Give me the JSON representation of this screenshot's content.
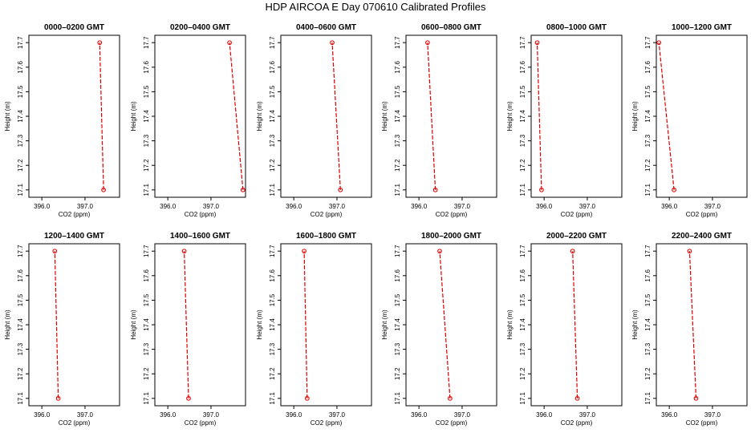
{
  "title": "HDP  AIRCOA E  Day 070610  Calibrated Profiles",
  "line_color": "#e00000",
  "chart_data": [
    {
      "type": "line",
      "title": "0000–0200 GMT",
      "xlabel": "CO2 (ppm)",
      "ylabel": "Height (m)",
      "xlim": [
        395.7,
        397.8
      ],
      "ylim": [
        17.07,
        17.73
      ],
      "xticks": [
        "396.0",
        "397.0"
      ],
      "yticks": [
        "17.1",
        "17.2",
        "17.3",
        "17.4",
        "17.5",
        "17.6",
        "17.7"
      ],
      "x": [
        397.43,
        397.34
      ],
      "y": [
        17.1,
        17.7
      ]
    },
    {
      "type": "line",
      "title": "0200–0400 GMT",
      "xlabel": "CO2 (ppm)",
      "ylabel": "Height (m)",
      "xlim": [
        395.7,
        397.8
      ],
      "ylim": [
        17.07,
        17.73
      ],
      "xticks": [
        "396.0",
        "397.0"
      ],
      "yticks": [
        "17.1",
        "17.2",
        "17.3",
        "17.4",
        "17.5",
        "17.6",
        "17.7"
      ],
      "x": [
        397.74,
        397.43
      ],
      "y": [
        17.1,
        17.7
      ]
    },
    {
      "type": "line",
      "title": "0400–0600 GMT",
      "xlabel": "CO2 (ppm)",
      "ylabel": "Height (m)",
      "xlim": [
        395.7,
        397.8
      ],
      "ylim": [
        17.07,
        17.73
      ],
      "xticks": [
        "396.0",
        "397.0"
      ],
      "yticks": [
        "17.1",
        "17.2",
        "17.3",
        "17.4",
        "17.5",
        "17.6",
        "17.7"
      ],
      "x": [
        397.08,
        396.89
      ],
      "y": [
        17.1,
        17.7
      ]
    },
    {
      "type": "line",
      "title": "0600–0800 GMT",
      "xlabel": "CO2 (ppm)",
      "ylabel": "Height (m)",
      "xlim": [
        395.7,
        397.8
      ],
      "ylim": [
        17.07,
        17.73
      ],
      "xticks": [
        "396.0",
        "397.0"
      ],
      "yticks": [
        "17.1",
        "17.2",
        "17.3",
        "17.4",
        "17.5",
        "17.6",
        "17.7"
      ],
      "x": [
        396.38,
        396.2
      ],
      "y": [
        17.1,
        17.7
      ]
    },
    {
      "type": "line",
      "title": "0800–1000 GMT",
      "xlabel": "CO2 (ppm)",
      "ylabel": "Height (m)",
      "xlim": [
        395.7,
        397.8
      ],
      "ylim": [
        17.07,
        17.73
      ],
      "xticks": [
        "396.0",
        "397.0"
      ],
      "yticks": [
        "17.1",
        "17.2",
        "17.3",
        "17.4",
        "17.5",
        "17.6",
        "17.7"
      ],
      "x": [
        395.94,
        395.84
      ],
      "y": [
        17.1,
        17.7
      ]
    },
    {
      "type": "line",
      "title": "1000–1200 GMT",
      "xlabel": "CO2 (ppm)",
      "ylabel": "Height (m)",
      "xlim": [
        395.7,
        397.8
      ],
      "ylim": [
        17.07,
        17.73
      ],
      "xticks": [
        "396.0",
        "397.0"
      ],
      "yticks": [
        "17.1",
        "17.2",
        "17.3",
        "17.4",
        "17.5",
        "17.6",
        "17.7"
      ],
      "x": [
        396.11,
        395.76
      ],
      "y": [
        17.1,
        17.7
      ]
    },
    {
      "type": "line",
      "title": "1200–1400 GMT",
      "xlabel": "CO2 (ppm)",
      "ylabel": "Height (m)",
      "xlim": [
        395.7,
        397.8
      ],
      "ylim": [
        17.07,
        17.73
      ],
      "xticks": [
        "396.0",
        "397.0"
      ],
      "yticks": [
        "17.1",
        "17.2",
        "17.3",
        "17.4",
        "17.5",
        "17.6",
        "17.7"
      ],
      "x": [
        396.38,
        396.3
      ],
      "y": [
        17.1,
        17.7
      ]
    },
    {
      "type": "line",
      "title": "1400–1600 GMT",
      "xlabel": "CO2 (ppm)",
      "ylabel": "Height (m)",
      "xlim": [
        395.7,
        397.8
      ],
      "ylim": [
        17.07,
        17.73
      ],
      "xticks": [
        "396.0",
        "397.0"
      ],
      "yticks": [
        "17.1",
        "17.2",
        "17.3",
        "17.4",
        "17.5",
        "17.6",
        "17.7"
      ],
      "x": [
        396.48,
        396.38
      ],
      "y": [
        17.1,
        17.7
      ]
    },
    {
      "type": "line",
      "title": "1600–1800 GMT",
      "xlabel": "CO2 (ppm)",
      "ylabel": "Height (m)",
      "xlim": [
        395.7,
        397.8
      ],
      "ylim": [
        17.07,
        17.73
      ],
      "xticks": [
        "396.0",
        "397.0"
      ],
      "yticks": [
        "17.1",
        "17.2",
        "17.3",
        "17.4",
        "17.5",
        "17.6",
        "17.7"
      ],
      "x": [
        396.31,
        396.24
      ],
      "y": [
        17.1,
        17.7
      ]
    },
    {
      "type": "line",
      "title": "1800–2000 GMT",
      "xlabel": "CO2 (ppm)",
      "ylabel": "Height (m)",
      "xlim": [
        395.7,
        397.8
      ],
      "ylim": [
        17.07,
        17.73
      ],
      "xticks": [
        "396.0",
        "397.0"
      ],
      "yticks": [
        "17.1",
        "17.2",
        "17.3",
        "17.4",
        "17.5",
        "17.6",
        "17.7"
      ],
      "x": [
        396.72,
        396.48
      ],
      "y": [
        17.1,
        17.7
      ]
    },
    {
      "type": "line",
      "title": "2000–2200 GMT",
      "xlabel": "CO2 (ppm)",
      "ylabel": "Height (m)",
      "xlim": [
        395.7,
        397.8
      ],
      "ylim": [
        17.07,
        17.73
      ],
      "xticks": [
        "396.0",
        "397.0"
      ],
      "yticks": [
        "17.1",
        "17.2",
        "17.3",
        "17.4",
        "17.5",
        "17.6",
        "17.7"
      ],
      "x": [
        396.77,
        396.66
      ],
      "y": [
        17.1,
        17.7
      ]
    },
    {
      "type": "line",
      "title": "2200–2400 GMT",
      "xlabel": "CO2 (ppm)",
      "ylabel": "Height (m)",
      "xlim": [
        395.7,
        397.8
      ],
      "ylim": [
        17.07,
        17.73
      ],
      "xticks": [
        "396.0",
        "397.0"
      ],
      "yticks": [
        "17.1",
        "17.2",
        "17.3",
        "17.4",
        "17.5",
        "17.6",
        "17.7"
      ],
      "x": [
        396.62,
        396.47
      ],
      "y": [
        17.1,
        17.7
      ]
    }
  ]
}
